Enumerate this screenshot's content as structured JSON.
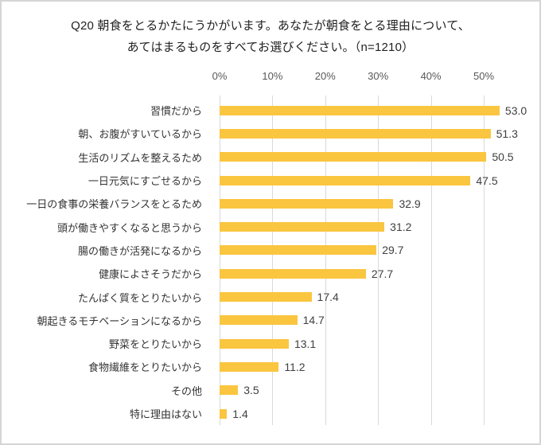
{
  "frame": {
    "background": "#ffffff",
    "border_color": "#d5d5d5"
  },
  "title": {
    "line1": "Q20 朝食をとるかたにうかがいます。あなたが朝食をとる理由について、",
    "line2": "あてはまるものをすべてお選びください。（n=1210）"
  },
  "chart_data": {
    "type": "bar",
    "orientation": "horizontal",
    "title": "Q20 朝食をとるかたにうかがいます。あなたが朝食をとる理由について、あてはまるものをすべてお選びください。（n=1210）",
    "sample_size_label": "n=1210",
    "categories": [
      "習慣だから",
      "朝、お腹がすいているから",
      "生活のリズムを整えるため",
      "一日元気にすごせるから",
      "一日の食事の栄養バランスをとるため",
      "頭が働きやすくなると思うから",
      "腸の働きが活発になるから",
      "健康によさそうだから",
      "たんぱく質をとりたいから",
      "朝起きるモチベーションになるから",
      "野菜をとりたいから",
      "食物繊維をとりたいから",
      "その他",
      "特に理由はない"
    ],
    "values": [
      53.0,
      51.3,
      50.5,
      47.5,
      32.9,
      31.2,
      29.7,
      27.7,
      17.4,
      14.7,
      13.1,
      11.2,
      3.5,
      1.4
    ],
    "value_labels": [
      "53.0",
      "51.3",
      "50.5",
      "47.5",
      "32.9",
      "31.2",
      "29.7",
      "27.7",
      "17.4",
      "14.7",
      "13.1",
      "11.2",
      "3.5",
      "1.4"
    ],
    "xlabel": "",
    "ylabel": "",
    "axis": {
      "unit": "%",
      "ticks": [
        0,
        10,
        20,
        30,
        40,
        50
      ],
      "tick_labels": [
        "0%",
        "10%",
        "20%",
        "30%",
        "40%",
        "50%"
      ],
      "min": 0,
      "max": 55,
      "position": "top"
    },
    "grid": true,
    "legend": "none",
    "value_label_style": "outside end, one decimal",
    "bar_color": "#FAC53F",
    "gridline_color": "#D9D9D9",
    "value_label_color": "#404040",
    "category_label_color": "#333333",
    "axis_label_color": "#595959"
  }
}
